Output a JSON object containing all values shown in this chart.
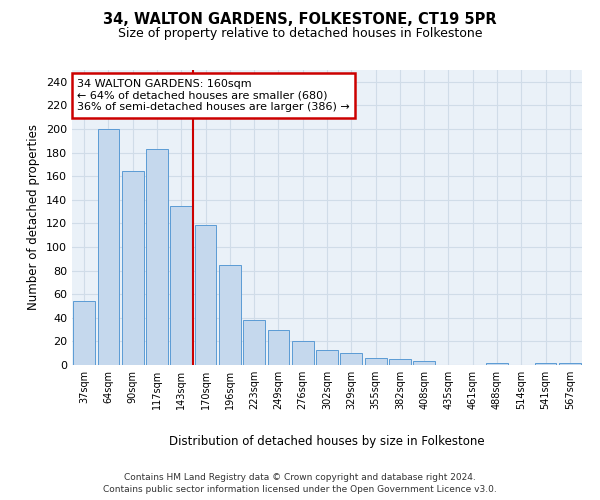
{
  "title": "34, WALTON GARDENS, FOLKESTONE, CT19 5PR",
  "subtitle": "Size of property relative to detached houses in Folkestone",
  "xlabel": "Distribution of detached houses by size in Folkestone",
  "ylabel": "Number of detached properties",
  "categories": [
    "37sqm",
    "64sqm",
    "90sqm",
    "117sqm",
    "143sqm",
    "170sqm",
    "196sqm",
    "223sqm",
    "249sqm",
    "276sqm",
    "302sqm",
    "329sqm",
    "355sqm",
    "382sqm",
    "408sqm",
    "435sqm",
    "461sqm",
    "488sqm",
    "514sqm",
    "541sqm",
    "567sqm"
  ],
  "values": [
    54,
    200,
    164,
    183,
    135,
    119,
    85,
    38,
    30,
    20,
    13,
    10,
    6,
    5,
    3,
    0,
    0,
    2,
    0,
    2,
    2
  ],
  "bar_color": "#c5d8ed",
  "bar_edge_color": "#5b9bd5",
  "marker_label": "34 WALTON GARDENS: 160sqm",
  "annotation_line1": "← 64% of detached houses are smaller (680)",
  "annotation_line2": "36% of semi-detached houses are larger (386) →",
  "annotation_box_color": "#ffffff",
  "annotation_box_edge": "#cc0000",
  "marker_line_color": "#cc0000",
  "ylim": [
    0,
    250
  ],
  "yticks": [
    0,
    20,
    40,
    60,
    80,
    100,
    120,
    140,
    160,
    180,
    200,
    220,
    240
  ],
  "grid_color": "#d0dce8",
  "background_color": "#eaf1f8",
  "footer_line1": "Contains HM Land Registry data © Crown copyright and database right 2024.",
  "footer_line2": "Contains public sector information licensed under the Open Government Licence v3.0."
}
